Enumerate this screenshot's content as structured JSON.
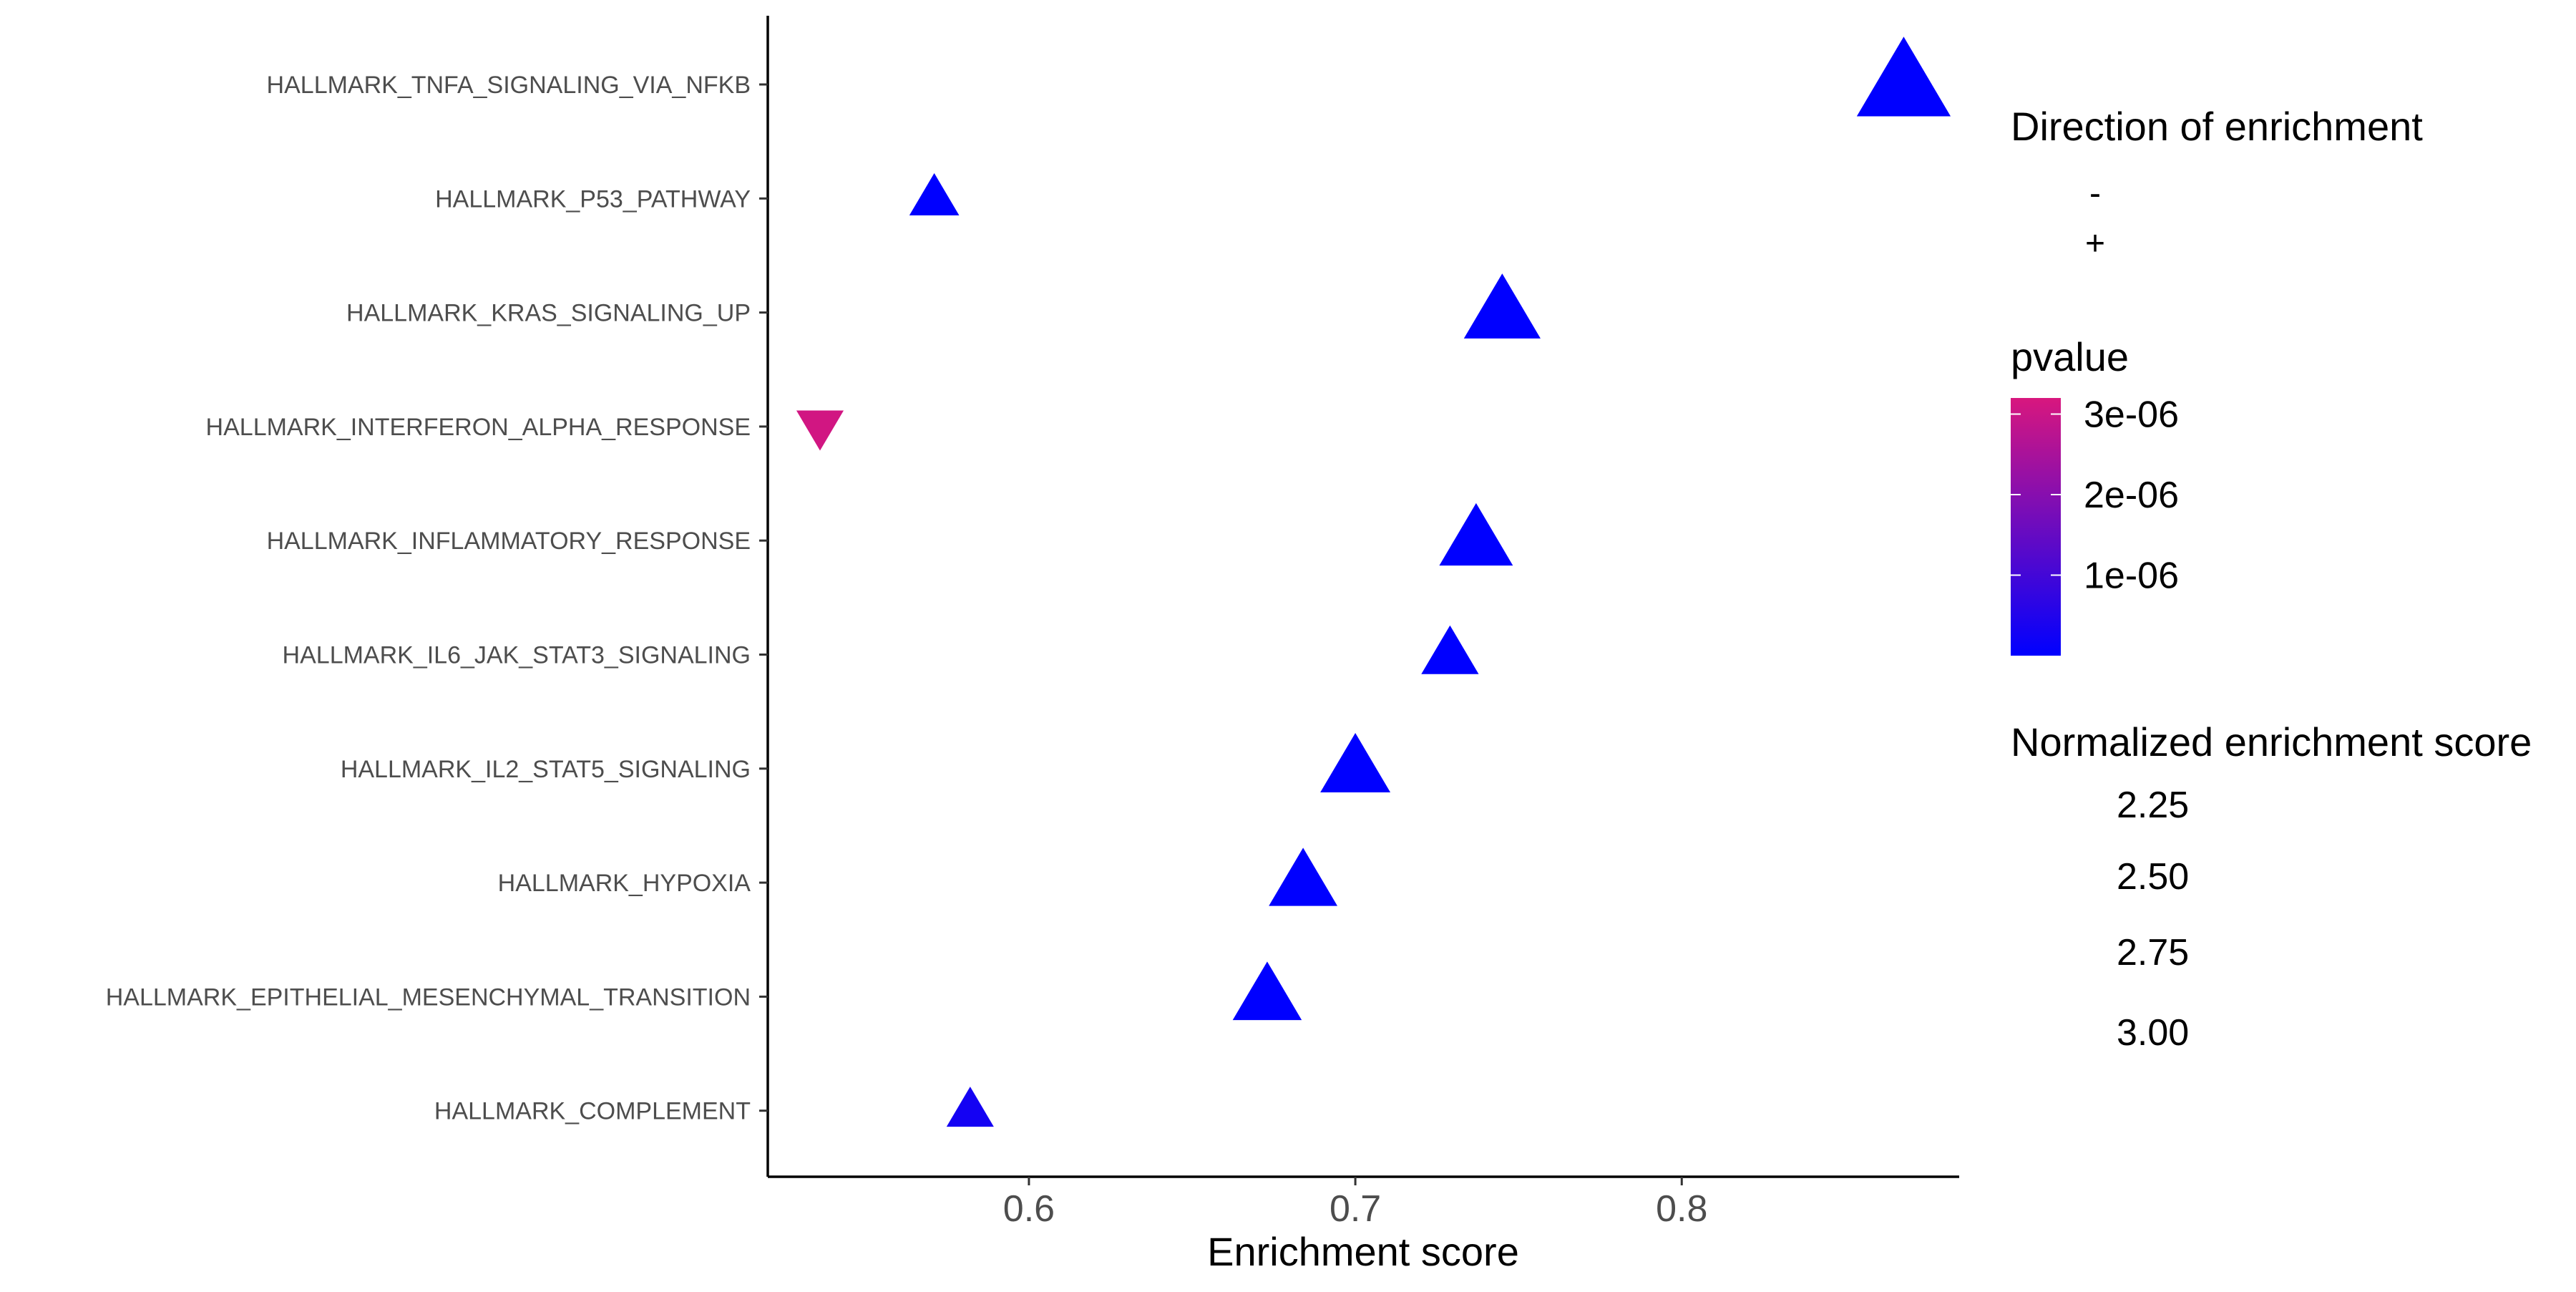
{
  "chart_data": {
    "type": "scatter",
    "title": "",
    "xlabel": "Enrichment score",
    "ylabel": "",
    "xlim": [
      0.52,
      0.885
    ],
    "x_ticks": [
      0.6,
      0.7,
      0.8
    ],
    "x_tick_labels": [
      "0.6",
      "0.7",
      "0.8"
    ],
    "grid": false,
    "legend_position": "right",
    "categories": [
      "HALLMARK_TNFA_SIGNALING_VIA_NFKB",
      "HALLMARK_P53_PATHWAY",
      "HALLMARK_KRAS_SIGNALING_UP",
      "HALLMARK_INTERFERON_ALPHA_RESPONSE",
      "HALLMARK_INFLAMMATORY_RESPONSE",
      "HALLMARK_IL6_JAK_STAT3_SIGNALING",
      "HALLMARK_IL2_STAT5_SIGNALING",
      "HALLMARK_HYPOXIA",
      "HALLMARK_EPITHELIAL_MESENCHYMAL_TRANSITION",
      "HALLMARK_COMPLEMENT"
    ],
    "points": [
      {
        "pathway": "HALLMARK_TNFA_SIGNALING_VIA_NFKB",
        "enrichment_score": 0.868,
        "direction": "+",
        "pvalue": 1e-10,
        "nes": 3.12
      },
      {
        "pathway": "HALLMARK_P53_PATHWAY",
        "enrichment_score": 0.571,
        "direction": "+",
        "pvalue": 1e-10,
        "nes": 2.25
      },
      {
        "pathway": "HALLMARK_KRAS_SIGNALING_UP",
        "enrichment_score": 0.745,
        "direction": "+",
        "pvalue": 1e-10,
        "nes": 2.78
      },
      {
        "pathway": "HALLMARK_INTERFERON_ALPHA_RESPONSE",
        "enrichment_score": 0.536,
        "direction": "-",
        "pvalue": 3.1e-06,
        "nes": 2.2
      },
      {
        "pathway": "HALLMARK_INFLAMMATORY_RESPONSE",
        "enrichment_score": 0.737,
        "direction": "+",
        "pvalue": 1e-10,
        "nes": 2.72
      },
      {
        "pathway": "HALLMARK_IL6_JAK_STAT3_SIGNALING",
        "enrichment_score": 0.729,
        "direction": "+",
        "pvalue": 1e-10,
        "nes": 2.4
      },
      {
        "pathway": "HALLMARK_IL2_STAT5_SIGNALING",
        "enrichment_score": 0.7,
        "direction": "+",
        "pvalue": 1e-10,
        "nes": 2.65
      },
      {
        "pathway": "HALLMARK_HYPOXIA",
        "enrichment_score": 0.684,
        "direction": "+",
        "pvalue": 1e-10,
        "nes": 2.62
      },
      {
        "pathway": "HALLMARK_EPITHELIAL_MESENCHYMAL_TRANSITION",
        "enrichment_score": 0.673,
        "direction": "+",
        "pvalue": 1e-10,
        "nes": 2.63
      },
      {
        "pathway": "HALLMARK_COMPLEMENT",
        "enrichment_score": 0.582,
        "direction": "+",
        "pvalue": 3e-07,
        "nes": 2.2
      }
    ],
    "legend": {
      "direction": {
        "title": "Direction of enrichment",
        "items": [
          "-",
          "+"
        ]
      },
      "pvalue": {
        "title": "pvalue",
        "range": [
          0,
          3.2e-06
        ],
        "low_color": "#0000ff",
        "high_color": "#d8177e",
        "breaks": [
          3e-06,
          2e-06,
          1e-06
        ],
        "labels": [
          "3e-06",
          "2e-06",
          "1e-06"
        ]
      },
      "nes": {
        "title": "Normalized enrichment score",
        "breaks": [
          2.25,
          2.5,
          2.75,
          3.0
        ],
        "labels": [
          "2.25",
          "2.50",
          "2.75",
          "3.00"
        ]
      }
    }
  }
}
